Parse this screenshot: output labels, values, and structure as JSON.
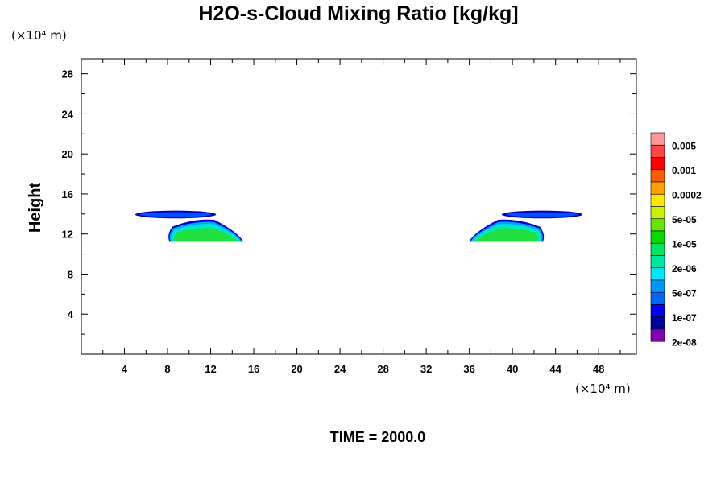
{
  "chart_data": {
    "type": "contour",
    "title": "H2O-s-Cloud Mixing Ratio [kg/kg]",
    "x_unit": "(×10⁴ m)",
    "y_unit": "(×10⁴ m)",
    "ylabel": "Height",
    "footer": "TIME = 2000.0",
    "xlim": [
      0,
      51.5
    ],
    "ylim": [
      0,
      29.5
    ],
    "x_ticks": [
      4,
      8,
      12,
      16,
      20,
      24,
      28,
      32,
      36,
      40,
      44,
      48
    ],
    "x_ticklabels": [
      "4",
      "8",
      "12",
      "16",
      "20",
      "24",
      "28",
      "32",
      "36",
      "40",
      "44",
      "48"
    ],
    "y_ticks": [
      4,
      8,
      12,
      16,
      20,
      24,
      28
    ],
    "y_ticklabels": [
      "4",
      "8",
      "12",
      "16",
      "20",
      "24",
      "28"
    ],
    "minor_tick_step": 2,
    "colorbar": {
      "colors": [
        "#ff9999",
        "#ff4444",
        "#ff0000",
        "#ff5a00",
        "#ffa000",
        "#ffe600",
        "#c8f000",
        "#64e600",
        "#00dc00",
        "#00e664",
        "#00e6a0",
        "#00e6ff",
        "#0096ff",
        "#0064ff",
        "#0000ff",
        "#0000a0",
        "#8000b4"
      ],
      "labels": [
        "0.005",
        "0.001",
        "0.0002",
        "5e-05",
        "1e-05",
        "2e-06",
        "5e-07",
        "1e-07",
        "2e-08"
      ]
    },
    "cloud_layers": [
      {
        "name": "west-upper-layer",
        "x_range": [
          5,
          12.5
        ],
        "y_range": [
          13.6,
          14.3
        ],
        "core_level": "1e-07"
      },
      {
        "name": "west-lower-cloud",
        "x_range": [
          8,
          15
        ],
        "y_range": [
          11.3,
          13.5
        ],
        "core_level": "2e-06"
      },
      {
        "name": "east-upper-layer",
        "x_range": [
          39,
          46.5
        ],
        "y_range": [
          13.6,
          14.3
        ],
        "core_level": "1e-07"
      },
      {
        "name": "east-lower-cloud",
        "x_range": [
          36,
          43
        ],
        "y_range": [
          11.3,
          13.5
        ],
        "core_level": "2e-06"
      }
    ]
  }
}
